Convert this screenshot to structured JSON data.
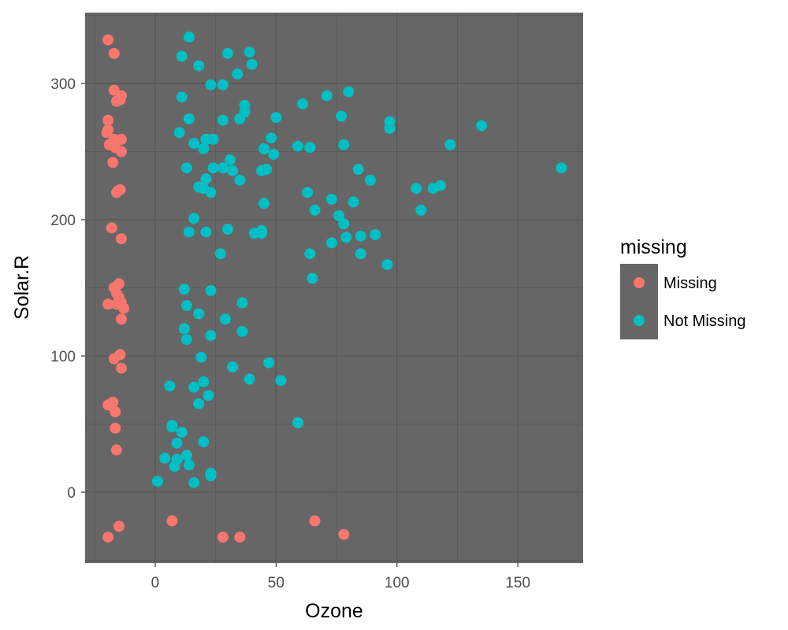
{
  "chart_data": {
    "type": "scatter",
    "xlabel": "Ozone",
    "ylabel": "Solar.R",
    "xlim": [
      -29,
      177
    ],
    "ylim": [
      -52,
      352
    ],
    "xticks": [
      0,
      50,
      100,
      150
    ],
    "yticks": [
      0,
      100,
      200,
      300
    ],
    "x_tick_labels": [
      "0",
      "50",
      "100",
      "150"
    ],
    "y_tick_labels": [
      "0",
      "100",
      "200",
      "300"
    ],
    "grid": true,
    "legend_position": "right",
    "legend_title": "missing",
    "panel_color": "#666666",
    "grid_color": "#595959",
    "series": [
      {
        "name": "Missing",
        "color": "#F8766D",
        "points": [
          [
            -19.5,
            332
          ],
          [
            -17,
            322
          ],
          [
            -17,
            295
          ],
          [
            -16,
            287
          ],
          [
            -14.5,
            288
          ],
          [
            -14,
            291
          ],
          [
            -19.5,
            273
          ],
          [
            -19.5,
            266
          ],
          [
            -20,
            264
          ],
          [
            -19,
            255
          ],
          [
            -17,
            259
          ],
          [
            -14,
            259
          ],
          [
            -16.5,
            253
          ],
          [
            -14,
            250
          ],
          [
            -17.5,
            242
          ],
          [
            -15.5,
            221
          ],
          [
            -14.5,
            222
          ],
          [
            -16,
            220
          ],
          [
            -18,
            194
          ],
          [
            -14,
            186
          ],
          [
            -17,
            150
          ],
          [
            -15,
            153
          ],
          [
            -16,
            146
          ],
          [
            -15,
            143
          ],
          [
            -19.5,
            138
          ],
          [
            -16,
            138
          ],
          [
            -14,
            139
          ],
          [
            -13,
            135
          ],
          [
            -14,
            127
          ],
          [
            -14.5,
            101
          ],
          [
            -17,
            98
          ],
          [
            -14,
            91
          ],
          [
            -17.5,
            66
          ],
          [
            -19.5,
            64
          ],
          [
            -16.5,
            59
          ],
          [
            -16.5,
            47
          ],
          [
            -16,
            31
          ],
          [
            -15,
            -25
          ],
          [
            -19.5,
            -33
          ],
          [
            7,
            -21
          ],
          [
            28,
            -33
          ],
          [
            35,
            -33
          ],
          [
            66,
            -21
          ],
          [
            78,
            -31
          ]
        ]
      },
      {
        "name": "Not Missing",
        "color": "#00BFC4",
        "points": [
          [
            41,
            190
          ],
          [
            36,
            118
          ],
          [
            12,
            149
          ],
          [
            18,
            313
          ],
          [
            28,
            299
          ],
          [
            23,
            299
          ],
          [
            19,
            99
          ],
          [
            8,
            19
          ],
          [
            7,
            49
          ],
          [
            16,
            256
          ],
          [
            11,
            290
          ],
          [
            14,
            274
          ],
          [
            18,
            65
          ],
          [
            14,
            334
          ],
          [
            34,
            307
          ],
          [
            6,
            78
          ],
          [
            30,
            322
          ],
          [
            11,
            44
          ],
          [
            1,
            8
          ],
          [
            11,
            320
          ],
          [
            4,
            25
          ],
          [
            32,
            92
          ],
          [
            45,
            252
          ],
          [
            115,
            223
          ],
          [
            37,
            279
          ],
          [
            29,
            127
          ],
          [
            71,
            291
          ],
          [
            39,
            323
          ],
          [
            23,
            148
          ],
          [
            21,
            191
          ],
          [
            37,
            284
          ],
          [
            20,
            37
          ],
          [
            12,
            120
          ],
          [
            13,
            137
          ],
          [
            135,
            269
          ],
          [
            49,
            248
          ],
          [
            32,
            236
          ],
          [
            64,
            175
          ],
          [
            40,
            314
          ],
          [
            77,
            276
          ],
          [
            97,
            267
          ],
          [
            97,
            272
          ],
          [
            85,
            175
          ],
          [
            10,
            264
          ],
          [
            27,
            175
          ],
          [
            7,
            48
          ],
          [
            48,
            260
          ],
          [
            35,
            274
          ],
          [
            61,
            285
          ],
          [
            79,
            187
          ],
          [
            63,
            220
          ],
          [
            16,
            7
          ],
          [
            80,
            294
          ],
          [
            108,
            223
          ],
          [
            20,
            81
          ],
          [
            52,
            82
          ],
          [
            82,
            213
          ],
          [
            50,
            275
          ],
          [
            64,
            253
          ],
          [
            59,
            254
          ],
          [
            39,
            83
          ],
          [
            9,
            24
          ],
          [
            16,
            77
          ],
          [
            78,
            255
          ],
          [
            35,
            229
          ],
          [
            66,
            207
          ],
          [
            122,
            255
          ],
          [
            89,
            229
          ],
          [
            110,
            207
          ],
          [
            44,
            192
          ],
          [
            28,
            273
          ],
          [
            65,
            157
          ],
          [
            22,
            71
          ],
          [
            59,
            51
          ],
          [
            23,
            115
          ],
          [
            31,
            244
          ],
          [
            44,
            190
          ],
          [
            21,
            259
          ],
          [
            9,
            36
          ],
          [
            45,
            212
          ],
          [
            168,
            238
          ],
          [
            73,
            215
          ],
          [
            76,
            203
          ],
          [
            118,
            225
          ],
          [
            84,
            237
          ],
          [
            85,
            188
          ],
          [
            96,
            167
          ],
          [
            78,
            197
          ],
          [
            73,
            183
          ],
          [
            91,
            189
          ],
          [
            47,
            95
          ],
          [
            32,
            92
          ],
          [
            20,
            252
          ],
          [
            23,
            220
          ],
          [
            21,
            230
          ],
          [
            24,
            259
          ],
          [
            44,
            236
          ],
          [
            21,
            259
          ],
          [
            28,
            238
          ],
          [
            9,
            24
          ],
          [
            13,
            112
          ],
          [
            46,
            237
          ],
          [
            18,
            224
          ],
          [
            13,
            27
          ],
          [
            24,
            238
          ],
          [
            16,
            201
          ],
          [
            13,
            238
          ],
          [
            23,
            14
          ],
          [
            36,
            139
          ],
          [
            7,
            49
          ],
          [
            14,
            20
          ],
          [
            30,
            193
          ],
          [
            14,
            191
          ],
          [
            18,
            131
          ],
          [
            20,
            223
          ],
          [
            23,
            12
          ]
        ]
      }
    ]
  }
}
